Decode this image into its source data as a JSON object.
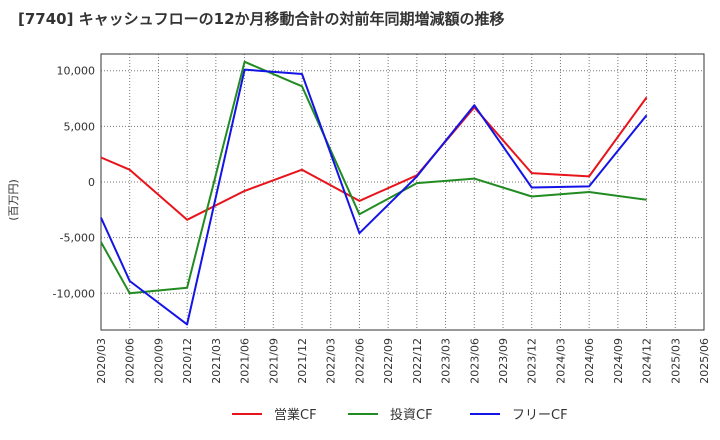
{
  "chart_data": {
    "type": "line",
    "title": "[7740]  キャッシュフローの12か月移動合計の対前年同期増減額の推移",
    "ylabel": "(百万円)",
    "xlabel": "",
    "categories": [
      "2020/03",
      "2020/06",
      "2020/09",
      "2020/12",
      "2021/03",
      "2021/06",
      "2021/09",
      "2021/12",
      "2022/03",
      "2022/06",
      "2022/09",
      "2022/12",
      "2023/03",
      "2023/06",
      "2023/09",
      "2023/12",
      "2024/03",
      "2024/06",
      "2024/09",
      "2024/12",
      "2025/03",
      "2025/06"
    ],
    "yticks": [
      10000,
      5000,
      0,
      -5000,
      -10000
    ],
    "ytick_labels": [
      "10,000",
      "5,000",
      "0",
      "-5,000",
      "-10,000"
    ],
    "ylim": [
      -13300,
      11500
    ],
    "grid": true,
    "legend_position": "bottom",
    "series": [
      {
        "name": "営業CF",
        "color": "#e8141b",
        "values": [
          2200,
          1100,
          null,
          -3400,
          null,
          -800,
          null,
          1100,
          null,
          -1700,
          null,
          600,
          null,
          6700,
          null,
          800,
          null,
          500,
          null,
          7600,
          null,
          null
        ]
      },
      {
        "name": "投資CF",
        "color": "#228b22",
        "values": [
          -5400,
          -10000,
          null,
          -9500,
          null,
          10800,
          null,
          8600,
          null,
          -2900,
          null,
          -100,
          null,
          300,
          null,
          -1300,
          null,
          -900,
          null,
          -1600,
          null,
          null
        ]
      },
      {
        "name": "フリーCF",
        "color": "#1414e6",
        "values": [
          -3200,
          -8900,
          null,
          -12800,
          null,
          10100,
          null,
          9700,
          null,
          -4600,
          null,
          500,
          null,
          6900,
          null,
          -500,
          null,
          -400,
          null,
          6000,
          null,
          null
        ]
      }
    ]
  }
}
